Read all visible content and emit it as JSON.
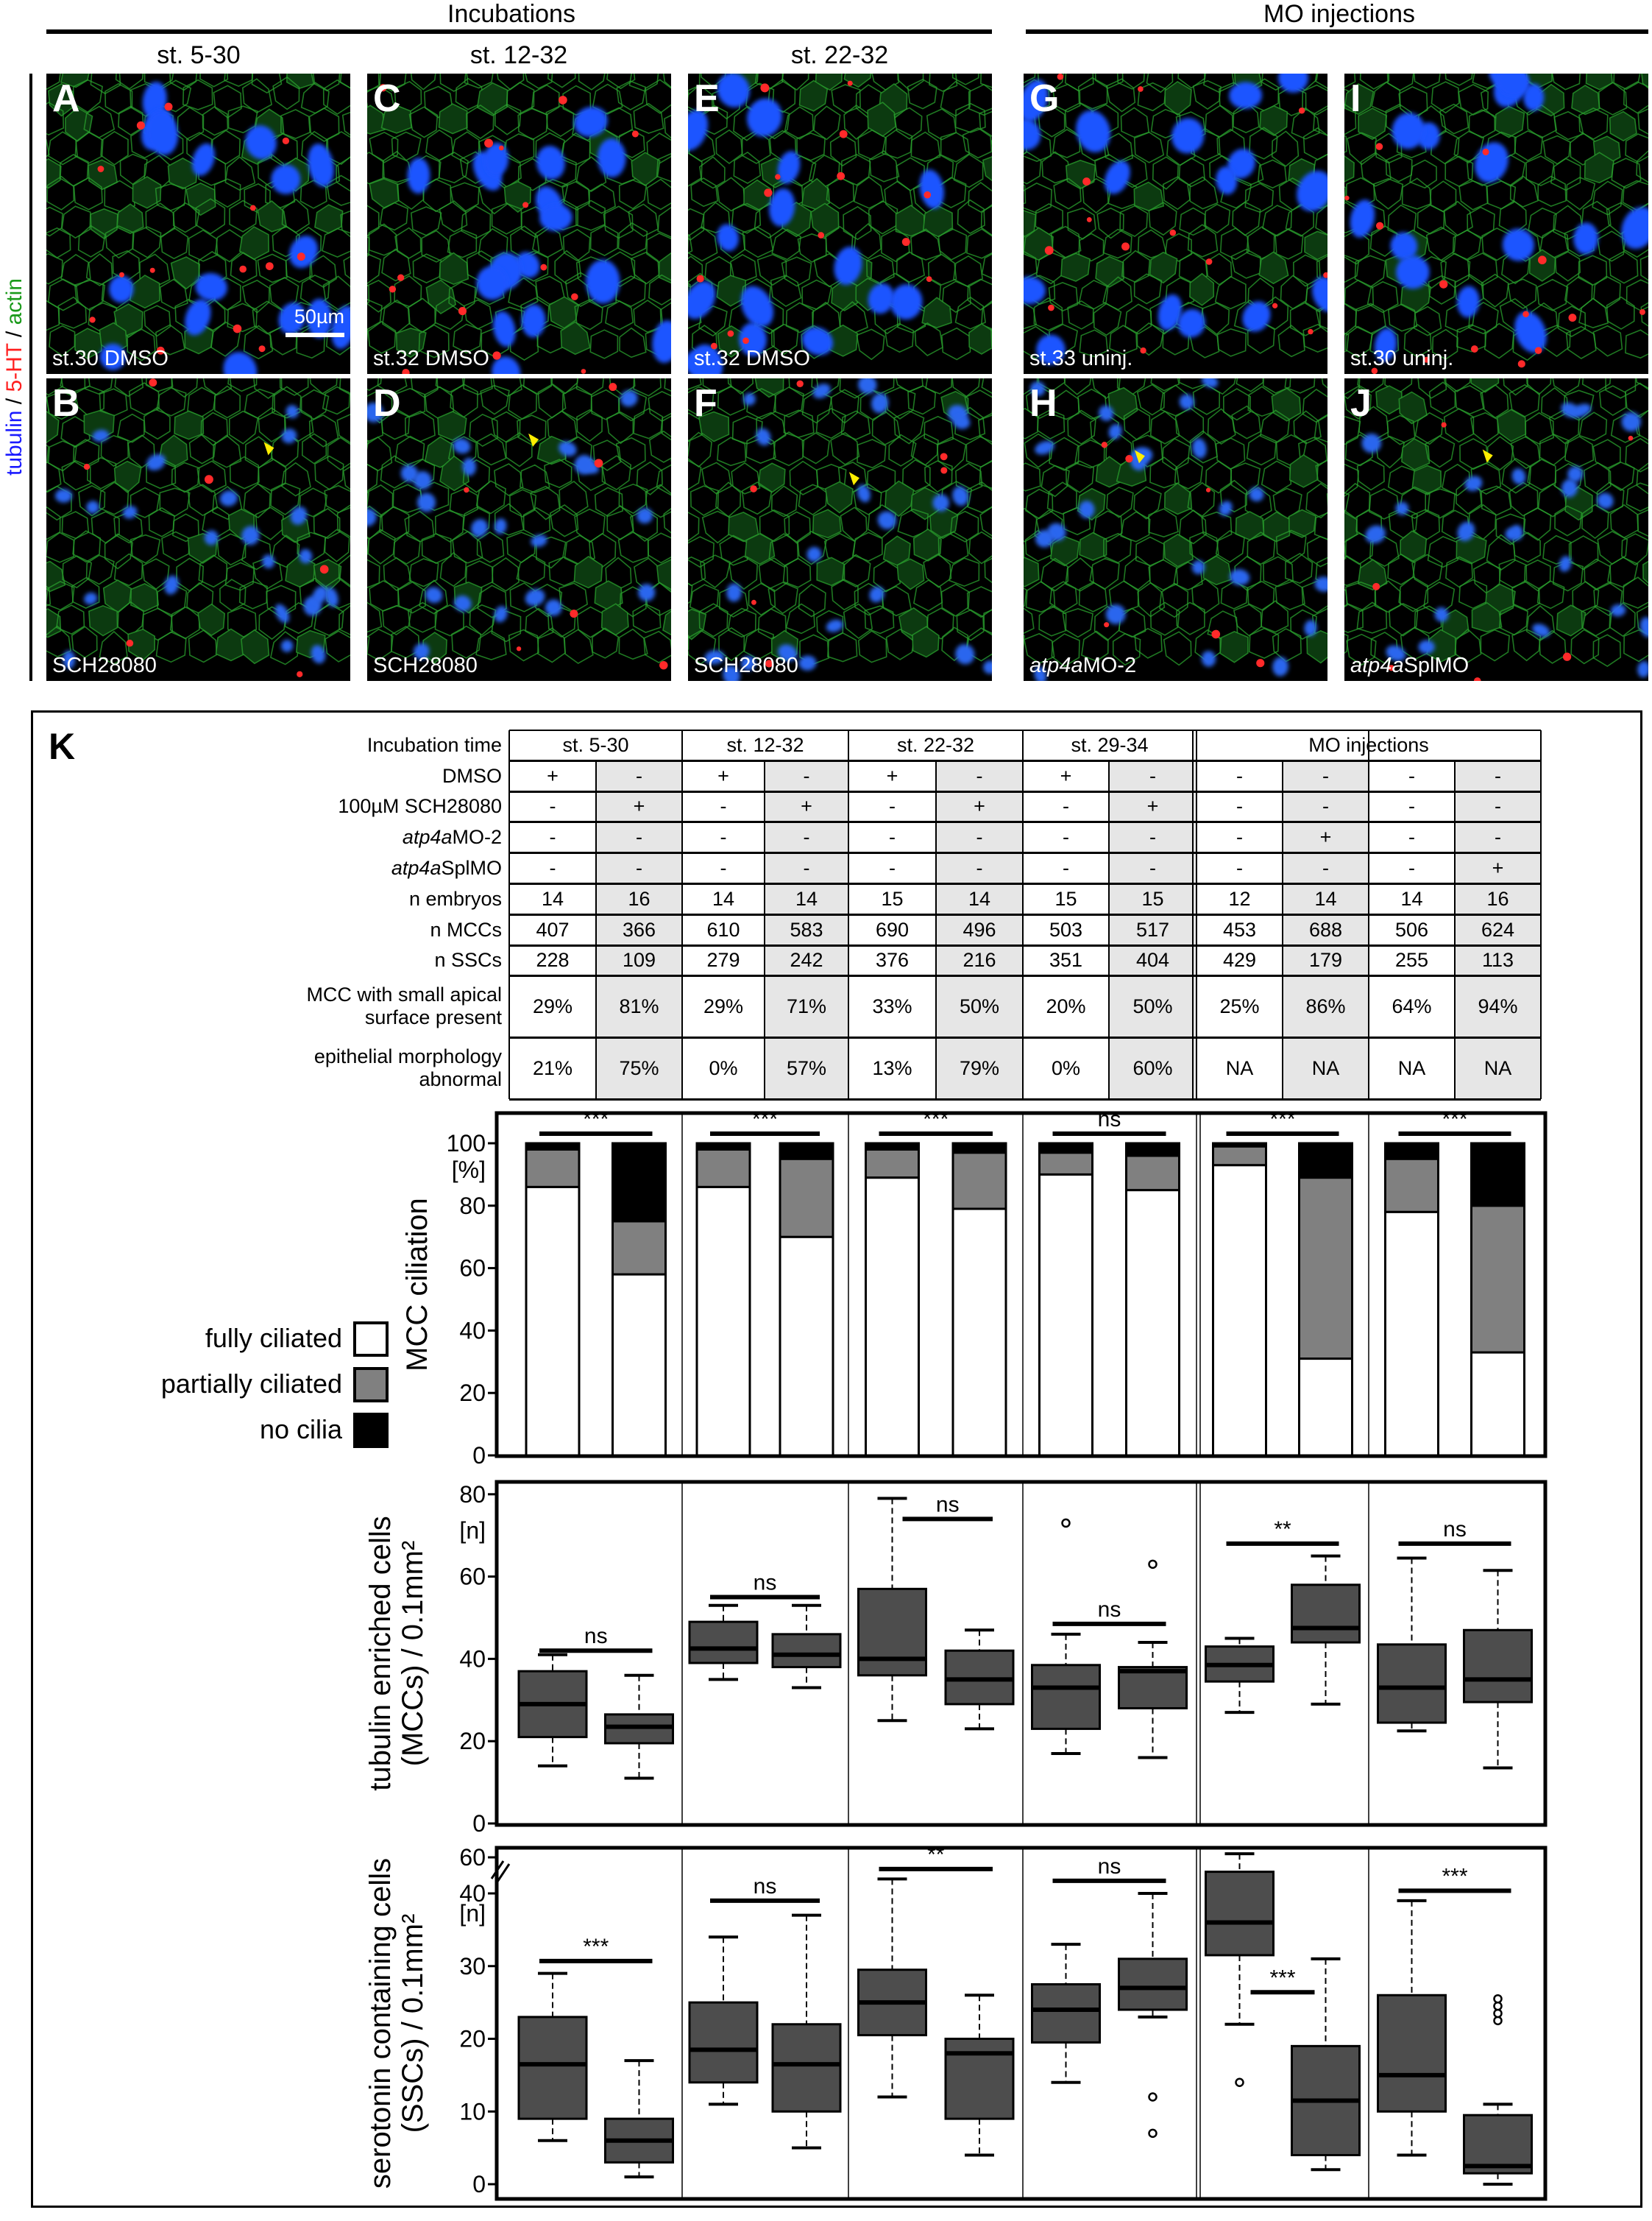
{
  "header": {
    "incubations": "Incubations",
    "mo_injections": "MO injections",
    "stages": [
      "st. 5-30",
      "st. 12-32",
      "st. 22-32"
    ]
  },
  "side_label": {
    "tubulin": "tubulin",
    "sep1": " / ",
    "ht": "5-HT",
    "sep2": " / ",
    "actin": "actin",
    "colors": {
      "tubulin": "#1a1aff",
      "ht": "#ff2020",
      "actin": "#1a9a1a"
    }
  },
  "panels": [
    {
      "letter": "A",
      "caption": "st.30 DMSO",
      "caption_italic": "",
      "row": "top"
    },
    {
      "letter": "B",
      "caption": "SCH28080",
      "caption_italic": "",
      "row": "bottom"
    },
    {
      "letter": "C",
      "caption": "st.32 DMSO",
      "caption_italic": "",
      "row": "top"
    },
    {
      "letter": "D",
      "caption": "SCH28080",
      "caption_italic": "",
      "row": "bottom"
    },
    {
      "letter": "E",
      "caption": "st.32 DMSO",
      "caption_italic": "",
      "row": "top"
    },
    {
      "letter": "F",
      "caption": "SCH28080",
      "caption_italic": "",
      "row": "bottom"
    },
    {
      "letter": "G",
      "caption": "st.33 uninj.",
      "caption_italic": "",
      "row": "top"
    },
    {
      "letter": "H",
      "caption": "MO-2",
      "caption_italic": "atp4a",
      "row": "bottom"
    },
    {
      "letter": "I",
      "caption": "st.30 uninj.",
      "caption_italic": "",
      "row": "top"
    },
    {
      "letter": "J",
      "caption": "SplMO",
      "caption_italic": "atp4a",
      "row": "bottom"
    }
  ],
  "scale_bar": "50µm",
  "panel_k": {
    "label": "K",
    "table": {
      "header_label": "Incubation time",
      "groups": [
        "st. 5-30",
        "st. 12-32",
        "st. 22-32",
        "st. 29-34",
        "MO injections"
      ],
      "rows": [
        {
          "label": "DMSO",
          "italic": "",
          "values": [
            "+",
            "-",
            "+",
            "-",
            "+",
            "-",
            "+",
            "-",
            "-",
            "-",
            "-",
            "-"
          ]
        },
        {
          "label": "100µM SCH28080",
          "italic": "",
          "values": [
            "-",
            "+",
            "-",
            "+",
            "-",
            "+",
            "-",
            "+",
            "-",
            "-",
            "-",
            "-"
          ]
        },
        {
          "label": "MO-2",
          "italic": "atp4a",
          "values": [
            "-",
            "-",
            "-",
            "-",
            "-",
            "-",
            "-",
            "-",
            "-",
            "+",
            "-",
            "-"
          ]
        },
        {
          "label": "SplMO",
          "italic": "atp4a",
          "values": [
            "-",
            "-",
            "-",
            "-",
            "-",
            "-",
            "-",
            "-",
            "-",
            "-",
            "-",
            "+"
          ]
        },
        {
          "label": "n embryos",
          "italic": "",
          "values": [
            "14",
            "16",
            "14",
            "14",
            "15",
            "14",
            "15",
            "15",
            "12",
            "14",
            "14",
            "16"
          ]
        },
        {
          "label": "n MCCs",
          "italic": "",
          "values": [
            "407",
            "366",
            "610",
            "583",
            "690",
            "496",
            "503",
            "517",
            "453",
            "688",
            "506",
            "624"
          ]
        },
        {
          "label": "n SSCs",
          "italic": "",
          "values": [
            "228",
            "109",
            "279",
            "242",
            "376",
            "216",
            "351",
            "404",
            "429",
            "179",
            "255",
            "113"
          ]
        },
        {
          "label": "MCC with small apical",
          "label2": "surface present",
          "italic": "",
          "values": [
            "29%",
            "81%",
            "29%",
            "71%",
            "33%",
            "50%",
            "20%",
            "50%",
            "25%",
            "86%",
            "64%",
            "94%"
          ]
        },
        {
          "label": "epithelial morphology",
          "label2": "abnormal",
          "italic": "",
          "values": [
            "21%",
            "75%",
            "0%",
            "57%",
            "13%",
            "79%",
            "0%",
            "60%",
            "NA",
            "NA",
            "NA",
            "NA"
          ]
        }
      ],
      "shade_color": "#e6e6e6"
    },
    "legend": [
      {
        "label": "fully ciliated",
        "color": "#ffffff"
      },
      {
        "label": "partially ciliated",
        "color": "#808080"
      },
      {
        "label": "no cilia",
        "color": "#000000"
      }
    ]
  },
  "chart_data": [
    {
      "type": "bar",
      "stacked": true,
      "ylabel": "MCC ciliation",
      "yunit": "[%]",
      "ylim": [
        0,
        100
      ],
      "yticks": [
        0,
        20,
        40,
        60,
        80,
        100
      ],
      "series": [
        {
          "name": "fully ciliated",
          "color": "#ffffff",
          "values": [
            86,
            58,
            86,
            70,
            89,
            79,
            90,
            85,
            93,
            31,
            78,
            33
          ]
        },
        {
          "name": "partially ciliated",
          "color": "#808080",
          "values": [
            12,
            17,
            12,
            25,
            9,
            18,
            7,
            11,
            6,
            58,
            17,
            47
          ]
        },
        {
          "name": "no cilia",
          "color": "#000000",
          "values": [
            2,
            25,
            2,
            5,
            2,
            3,
            3,
            4,
            1,
            11,
            5,
            20
          ]
        }
      ],
      "significance": [
        "***",
        "***",
        "***",
        "ns",
        "***",
        "***"
      ]
    },
    {
      "type": "box",
      "ylabel": "tubulin enriched cells",
      "ylabel2": "(MCCs) / 0.1mm²",
      "yunit": "[n]",
      "ylim": [
        0,
        80
      ],
      "yticks": [
        0,
        20,
        40,
        60,
        80
      ],
      "box_color": "#4d4d4d",
      "boxes": [
        {
          "min": 14,
          "q1": 21,
          "median": 29,
          "q3": 37,
          "max": 41,
          "outliers": []
        },
        {
          "min": 11,
          "q1": 19.5,
          "median": 23.5,
          "q3": 26.5,
          "max": 36,
          "outliers": []
        },
        {
          "min": 35,
          "q1": 39,
          "median": 42.5,
          "q3": 49,
          "max": 53,
          "outliers": []
        },
        {
          "min": 33,
          "q1": 38,
          "median": 41,
          "q3": 46,
          "max": 53,
          "outliers": []
        },
        {
          "min": 25,
          "q1": 36,
          "median": 40,
          "q3": 57,
          "max": 79,
          "outliers": []
        },
        {
          "min": 23,
          "q1": 29,
          "median": 35,
          "q3": 42,
          "max": 47,
          "outliers": []
        },
        {
          "min": 17,
          "q1": 23,
          "median": 33,
          "q3": 38.5,
          "max": 46,
          "outliers": [
            73
          ]
        },
        {
          "min": 16,
          "q1": 28,
          "median": 37,
          "q3": 38,
          "max": 44,
          "outliers": [
            63
          ]
        },
        {
          "min": 27,
          "q1": 34.5,
          "median": 38.5,
          "q3": 43,
          "max": 45,
          "outliers": []
        },
        {
          "min": 29,
          "q1": 44,
          "median": 47.5,
          "q3": 58,
          "max": 65,
          "outliers": []
        },
        {
          "min": 22.5,
          "q1": 24.5,
          "median": 33,
          "q3": 43.5,
          "max": 64.5,
          "outliers": []
        },
        {
          "min": 13.5,
          "q1": 29.5,
          "median": 35,
          "q3": 47,
          "max": 61.5,
          "outliers": []
        }
      ],
      "significance": [
        {
          "label": "ns",
          "pair": [
            0,
            1
          ],
          "y": 42
        },
        {
          "label": "ns",
          "pair": [
            2,
            3
          ],
          "y": 55
        },
        {
          "label": "ns",
          "pair": [
            4,
            5
          ],
          "y": 74
        },
        {
          "label": "ns",
          "pair": [
            6,
            7
          ],
          "y": 48.5
        },
        {
          "label": "**",
          "pair": [
            8,
            9
          ],
          "y": 68
        },
        {
          "label": "ns",
          "pair": [
            10,
            11
          ],
          "y": 68
        }
      ]
    },
    {
      "type": "box",
      "ylabel": "serotonin containing cells",
      "ylabel2": "(SSCs) / 0.1mm²",
      "yunit": "[n]",
      "ylim": [
        0,
        60
      ],
      "axis_break": 40,
      "yticks": [
        0,
        10,
        20,
        30,
        40,
        60
      ],
      "box_color": "#4d4d4d",
      "boxes": [
        {
          "min": 6,
          "q1": 9,
          "median": 16.5,
          "q3": 23,
          "max": 29,
          "outliers": []
        },
        {
          "min": 1,
          "q1": 3,
          "median": 6,
          "q3": 9,
          "max": 17,
          "outliers": []
        },
        {
          "min": 11,
          "q1": 14,
          "median": 18.5,
          "q3": 25,
          "max": 34,
          "outliers": []
        },
        {
          "min": 5,
          "q1": 10,
          "median": 16.5,
          "q3": 22,
          "max": 37,
          "outliers": []
        },
        {
          "min": 12,
          "q1": 20.5,
          "median": 25,
          "q3": 29.5,
          "max": 48,
          "outliers": []
        },
        {
          "min": 4,
          "q1": 9,
          "median": 18,
          "q3": 20,
          "max": 26,
          "outliers": []
        },
        {
          "min": 14,
          "q1": 19.5,
          "median": 24,
          "q3": 27.5,
          "max": 33,
          "outliers": []
        },
        {
          "min": 23,
          "q1": 24,
          "median": 27,
          "q3": 31,
          "max": 40,
          "outliers": [
            12,
            7
          ]
        },
        {
          "min": 22,
          "q1": 31.5,
          "median": 36,
          "q3": 52,
          "max": 62,
          "outliers": [
            14
          ]
        },
        {
          "min": 2,
          "q1": 4,
          "median": 11.5,
          "q3": 19,
          "max": 31,
          "outliers": []
        },
        {
          "min": 4,
          "q1": 10,
          "median": 15,
          "q3": 26,
          "max": 39,
          "outliers": []
        },
        {
          "min": 0,
          "q1": 1.5,
          "median": 2.5,
          "q3": 9.5,
          "max": 11,
          "outliers": [
            22.5,
            23.5,
            24.5,
            25.5
          ]
        }
      ],
      "significance": [
        {
          "label": "***",
          "pair": [
            0,
            1
          ],
          "y": 30.7
        },
        {
          "label": "ns",
          "pair": [
            2,
            3
          ],
          "y": 39
        },
        {
          "label": "**",
          "pair": [
            4,
            5
          ],
          "y": 53.5
        },
        {
          "label": "ns",
          "pair": [
            6,
            7
          ],
          "y": 47
        },
        {
          "label": "***",
          "pair": [
            8,
            9
          ],
          "y": 26.4
        },
        {
          "label": "***",
          "pair": [
            10,
            11
          ],
          "y": 41.5
        }
      ]
    }
  ]
}
